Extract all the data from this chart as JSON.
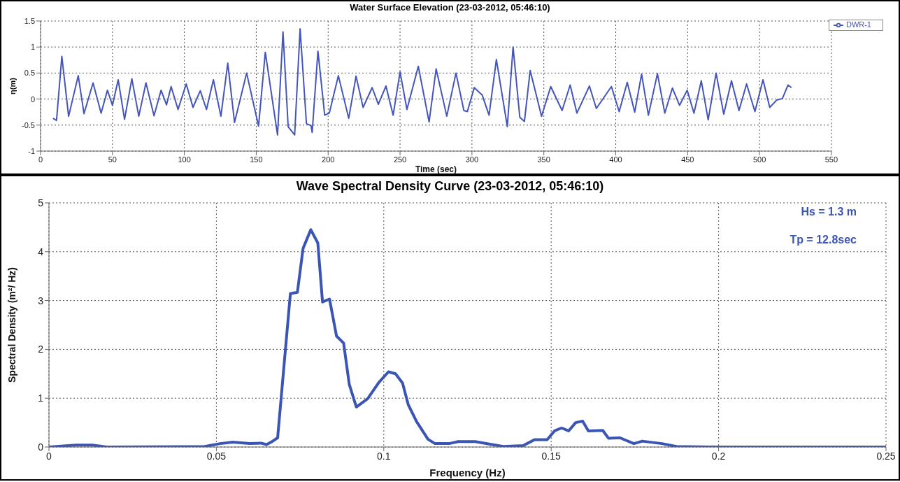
{
  "chart_data": [
    {
      "type": "line",
      "title": "Water Surface Elevation (23-03-2012, 05:46:10)",
      "xlabel": "Time (sec)",
      "ylabel": "η(m)",
      "xlim": [
        0,
        550
      ],
      "xticks": [
        0,
        50,
        100,
        150,
        200,
        250,
        300,
        350,
        400,
        450,
        500,
        550
      ],
      "ylim": [
        -1,
        1.5
      ],
      "yticks": [
        -1,
        -0.5,
        0,
        0.5,
        1,
        1.5
      ],
      "grid": true,
      "legend": "top right",
      "marker": "none",
      "line_style": "solid",
      "series": [
        {
          "name": "DWR-1",
          "color": "#4455bb",
          "x": [
            8.7,
            11.1,
            14.8,
            19.5,
            26.2,
            30.2,
            36.5,
            42.1,
            46.5,
            50,
            54,
            58.4,
            63.5,
            68.3,
            73.3,
            78.9,
            83.8,
            87.6,
            90.8,
            95.6,
            101.3,
            106,
            111.1,
            115.4,
            120.2,
            125.4,
            130.2,
            134.9,
            143.3,
            151.6,
            156.3,
            164.8,
            168.6,
            172.2,
            176.7,
            180.5,
            184.9,
            188.1,
            188.9,
            192.9,
            197.6,
            200.8,
            207.1,
            214.3,
            219.4,
            224.3,
            230.6,
            234.9,
            240.2,
            245.2,
            250,
            254.8,
            262.7,
            270.2,
            275.1,
            282.5,
            288.9,
            294.4,
            296.8,
            301.6,
            307.1,
            311.9,
            317,
            324.6,
            328.6,
            333.3,
            336.5,
            340.5,
            348.4,
            354.8,
            362.7,
            368.3,
            373,
            381.7,
            386.5,
            397,
            402.4,
            408,
            413.2,
            418,
            422.7,
            429,
            434.1,
            439.4,
            444.4,
            449.7,
            454.4,
            459.5,
            464.3,
            469.8,
            475.1,
            480.5,
            485.7,
            491,
            496.8,
            502.4,
            507.1,
            511.9,
            515.9,
            519.8,
            522.2
          ],
          "values": [
            -0.37,
            -0.41,
            0.82,
            -0.33,
            0.45,
            -0.28,
            0.31,
            -0.27,
            0.17,
            -0.12,
            0.37,
            -0.39,
            0.39,
            -0.33,
            0.31,
            -0.32,
            0.17,
            -0.11,
            0.24,
            -0.2,
            0.29,
            -0.16,
            0.16,
            -0.2,
            0.37,
            -0.33,
            0.69,
            -0.45,
            0.5,
            -0.52,
            0.9,
            -0.69,
            1.29,
            -0.53,
            -0.69,
            1.35,
            -0.47,
            -0.51,
            -0.64,
            0.92,
            -0.31,
            -0.27,
            0.45,
            -0.37,
            0.44,
            -0.16,
            0.22,
            -0.1,
            0.25,
            -0.31,
            0.52,
            -0.2,
            0.63,
            -0.44,
            0.58,
            -0.33,
            0.5,
            -0.22,
            -0.24,
            0.22,
            0.08,
            -0.31,
            0.76,
            -0.53,
            1.0,
            -0.35,
            -0.43,
            0.55,
            -0.33,
            0.24,
            -0.22,
            0.27,
            -0.27,
            0.25,
            -0.18,
            0.24,
            -0.24,
            0.32,
            -0.25,
            0.48,
            -0.31,
            0.49,
            -0.27,
            0.21,
            -0.12,
            0.17,
            -0.27,
            0.35,
            -0.4,
            0.5,
            -0.29,
            0.35,
            -0.22,
            0.29,
            -0.24,
            0.37,
            -0.16,
            -0.02,
            0.01,
            0.27,
            0.22
          ]
        }
      ]
    },
    {
      "type": "line",
      "title": "Wave Spectral Density Curve (23-03-2012, 05:46:10)",
      "xlabel": "Frequency (Hz)",
      "ylabel": "Spectral Density (m²/ Hz)",
      "xlim": [
        0,
        0.25
      ],
      "xticks": [
        0,
        0.05,
        0.1,
        0.15,
        0.2,
        0.25
      ],
      "ylim": [
        0,
        5
      ],
      "yticks": [
        0,
        1,
        2,
        3,
        4,
        5
      ],
      "grid": true,
      "marker": "none",
      "line_style": "solid",
      "annotations": [
        "Hs = 1.3 m",
        "Tp = 12.8sec"
      ],
      "series": [
        {
          "color": "#3a55b4",
          "x": [
            0,
            0.008,
            0.013,
            0.0172,
            0.0465,
            0.0511,
            0.0549,
            0.06,
            0.0633,
            0.065,
            0.0666,
            0.0683,
            0.0721,
            0.0742,
            0.0759,
            0.0782,
            0.0803,
            0.0817,
            0.0838,
            0.0859,
            0.088,
            0.0897,
            0.0918,
            0.0952,
            0.0985,
            0.1014,
            0.1035,
            0.1056,
            0.1073,
            0.1098,
            0.1132,
            0.1153,
            0.1195,
            0.1222,
            0.1273,
            0.1357,
            0.1416,
            0.145,
            0.1488,
            0.151,
            0.1531,
            0.1552,
            0.1573,
            0.1594,
            0.1611,
            0.1654,
            0.1671,
            0.1705,
            0.1747,
            0.1772,
            0.1831,
            0.1874,
            0.2,
            0.25
          ],
          "values": [
            0,
            0.04,
            0.04,
            0,
            0.01,
            0.07,
            0.1,
            0.07,
            0.08,
            0.05,
            0.11,
            0.19,
            3.14,
            3.17,
            4.07,
            4.45,
            4.18,
            2.97,
            3.03,
            2.27,
            2.13,
            1.28,
            0.82,
            0.99,
            1.32,
            1.54,
            1.5,
            1.31,
            0.87,
            0.52,
            0.16,
            0.07,
            0.07,
            0.11,
            0.11,
            0.01,
            0.03,
            0.15,
            0.15,
            0.33,
            0.39,
            0.33,
            0.5,
            0.53,
            0.33,
            0.34,
            0.18,
            0.19,
            0.07,
            0.12,
            0.07,
            0.01,
            0,
            0
          ]
        }
      ]
    }
  ]
}
